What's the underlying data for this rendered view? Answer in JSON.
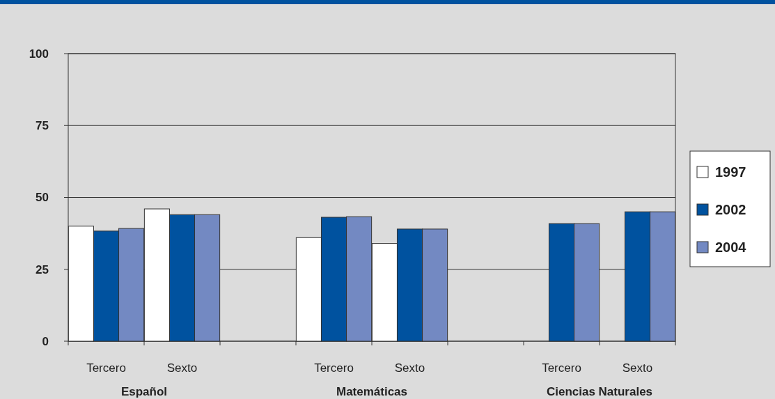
{
  "chart_data": {
    "type": "bar",
    "categories": [
      "Tercero",
      "Sexto",
      null,
      "Tercero",
      "Sexto",
      null,
      "Tercero",
      "Sexto"
    ],
    "series": [
      {
        "name": "1997",
        "color": "#ffffff",
        "values": [
          40,
          46,
          null,
          36,
          34,
          null,
          null,
          null
        ]
      },
      {
        "name": "2002",
        "color": "#00529f",
        "values": [
          38.3,
          44,
          null,
          43.1,
          39,
          null,
          40.9,
          45
        ]
      },
      {
        "name": "2004",
        "color": "#7389c2",
        "values": [
          39.2,
          44,
          null,
          43.3,
          39,
          null,
          40.9,
          45
        ]
      }
    ],
    "annotations": [
      "Español",
      "Matemáticas",
      "Ciencias Naturales"
    ],
    "ylim": [
      0,
      100
    ],
    "yticks": [
      0,
      25,
      50,
      75,
      100
    ],
    "grid": "y",
    "legend": "right"
  }
}
